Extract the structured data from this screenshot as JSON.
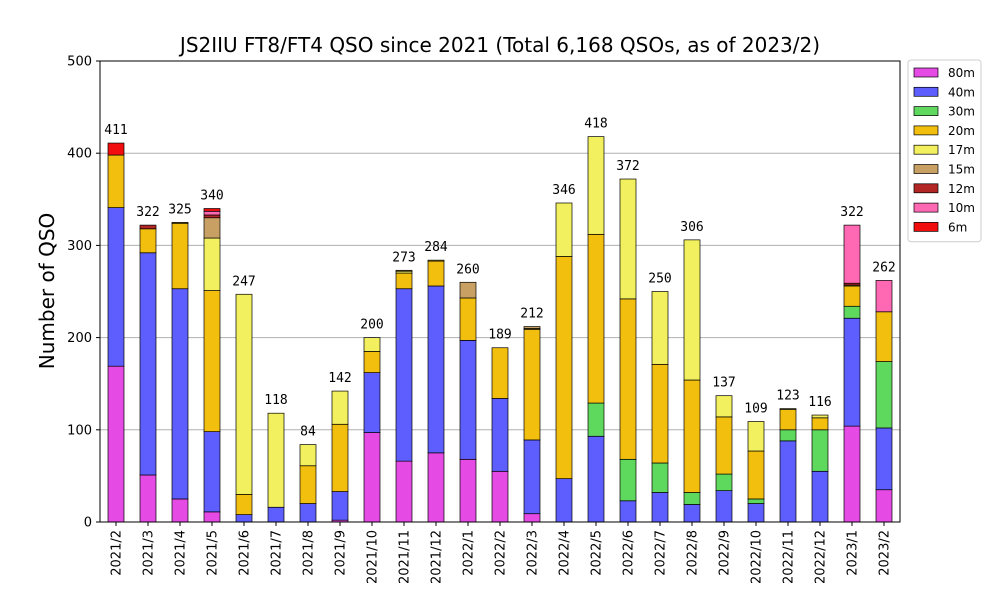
{
  "chart_data": {
    "type": "bar",
    "stacked": true,
    "title": "JS2IIU FT8/FT4 QSO since 2021 (Total 6,168 QSOs, as of 2023/2)",
    "xlabel": "",
    "ylabel": "Number of QSO",
    "ylim": [
      0,
      500
    ],
    "yticks": [
      0,
      100,
      200,
      300,
      400,
      500
    ],
    "grid": "horizontal",
    "legend_position": "top-right",
    "categories": [
      "2021/2",
      "2021/3",
      "2021/4",
      "2021/5",
      "2021/6",
      "2021/7",
      "2021/8",
      "2021/9",
      "2021/10",
      "2021/11",
      "2021/12",
      "2022/1",
      "2022/2",
      "2022/3",
      "2022/4",
      "2022/5",
      "2022/6",
      "2022/7",
      "2022/8",
      "2022/9",
      "2022/10",
      "2022/11",
      "2022/12",
      "2023/1",
      "2023/2"
    ],
    "totals": [
      411,
      322,
      325,
      340,
      247,
      118,
      84,
      142,
      200,
      273,
      284,
      260,
      189,
      212,
      346,
      418,
      372,
      250,
      306,
      137,
      109,
      123,
      116,
      322,
      262
    ],
    "series": [
      {
        "name": "80m",
        "color": "#e54ae5",
        "values": [
          169,
          51,
          25,
          11,
          0,
          0,
          0,
          2,
          97,
          66,
          75,
          68,
          55,
          9,
          0,
          0,
          0,
          0,
          0,
          0,
          0,
          0,
          0,
          104,
          35
        ]
      },
      {
        "name": "40m",
        "color": "#5e5eff",
        "values": [
          172,
          241,
          228,
          87,
          8,
          16,
          20,
          31,
          65,
          187,
          181,
          129,
          79,
          80,
          47,
          93,
          23,
          32,
          19,
          34,
          20,
          88,
          55,
          117,
          67
        ]
      },
      {
        "name": "30m",
        "color": "#5ed95e",
        "values": [
          0,
          0,
          0,
          0,
          0,
          0,
          0,
          0,
          0,
          0,
          0,
          0,
          0,
          0,
          0,
          36,
          45,
          32,
          13,
          18,
          5,
          12,
          45,
          13,
          72
        ]
      },
      {
        "name": "20m",
        "color": "#f2bf0e",
        "values": [
          57,
          26,
          71,
          153,
          22,
          0,
          41,
          73,
          23,
          17,
          27,
          46,
          55,
          120,
          241,
          183,
          174,
          107,
          122,
          62,
          52,
          22,
          13,
          22,
          54
        ]
      },
      {
        "name": "17m",
        "color": "#f2f05e",
        "values": [
          0,
          0,
          0,
          57,
          217,
          102,
          23,
          36,
          15,
          2,
          1,
          0,
          0,
          1,
          58,
          106,
          130,
          79,
          152,
          23,
          32,
          1,
          3,
          1,
          0
        ]
      },
      {
        "name": "15m",
        "color": "#c8a064",
        "values": [
          0,
          0,
          1,
          22,
          0,
          0,
          0,
          0,
          0,
          1,
          0,
          17,
          0,
          2,
          0,
          0,
          0,
          0,
          0,
          0,
          0,
          0,
          0,
          0,
          0
        ]
      },
      {
        "name": "12m",
        "color": "#b22626",
        "values": [
          0,
          4,
          0,
          3,
          0,
          0,
          0,
          0,
          0,
          0,
          0,
          0,
          0,
          0,
          0,
          0,
          0,
          0,
          0,
          0,
          0,
          0,
          0,
          2,
          0
        ]
      },
      {
        "name": "10m",
        "color": "#ff69b4",
        "values": [
          0,
          0,
          0,
          4,
          0,
          0,
          0,
          0,
          0,
          0,
          0,
          0,
          0,
          0,
          0,
          0,
          0,
          0,
          0,
          0,
          0,
          0,
          0,
          63,
          34
        ]
      },
      {
        "name": "6m",
        "color": "#f20e0e",
        "values": [
          13,
          0,
          0,
          3,
          0,
          0,
          0,
          0,
          0,
          0,
          0,
          0,
          0,
          0,
          0,
          0,
          0,
          0,
          0,
          0,
          0,
          0,
          0,
          0,
          0
        ]
      }
    ]
  }
}
